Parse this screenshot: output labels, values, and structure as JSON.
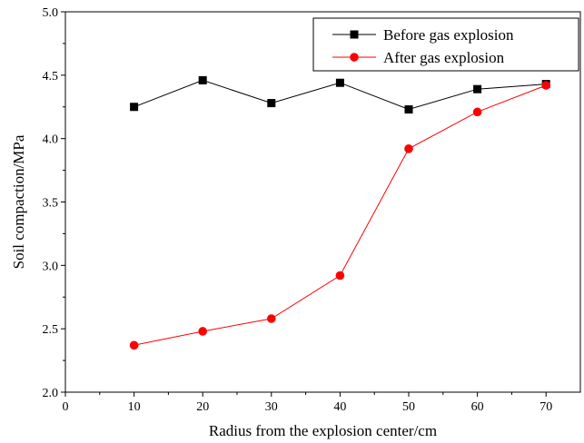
{
  "chart_data": {
    "type": "line",
    "title": "",
    "xlabel": "Radius from the explosion center/cm",
    "ylabel": "Soil compaction/MPa",
    "xlim": [
      0,
      75
    ],
    "ylim": [
      2.0,
      5.0
    ],
    "x_ticks": [
      0,
      10,
      20,
      30,
      40,
      50,
      60,
      70
    ],
    "x_tick_labels": [
      "0",
      "10",
      "20",
      "30",
      "40",
      "50",
      "60",
      "70"
    ],
    "y_ticks": [
      2.0,
      2.5,
      3.0,
      3.5,
      4.0,
      4.5,
      5.0
    ],
    "y_tick_labels": [
      "2.0",
      "2.5",
      "3.0",
      "3.5",
      "4.0",
      "4.5",
      "5.0"
    ],
    "grid": false,
    "legend_position": "top-right",
    "x": [
      10,
      20,
      30,
      40,
      50,
      60,
      70
    ],
    "series": [
      {
        "name": "Before gas explosion",
        "color": "#000000",
        "marker": "square",
        "values": [
          4.25,
          4.46,
          4.28,
          4.44,
          4.23,
          4.39,
          4.43
        ]
      },
      {
        "name": "After gas explosion",
        "color": "#ff0000",
        "marker": "circle",
        "values": [
          2.37,
          2.48,
          2.58,
          2.92,
          3.92,
          4.21,
          4.42
        ]
      }
    ]
  }
}
